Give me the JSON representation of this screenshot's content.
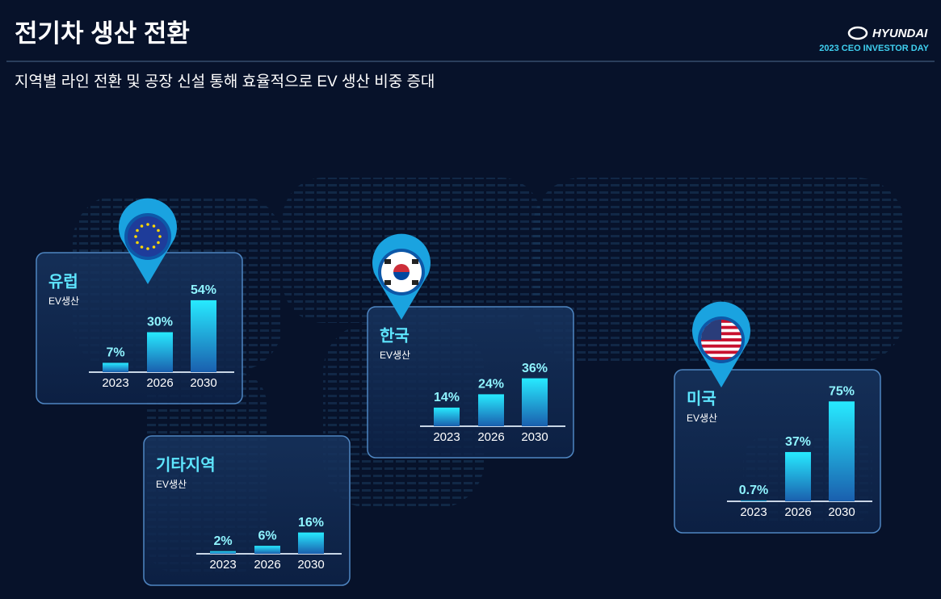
{
  "header": {
    "title": "전기차 생산 전환",
    "subtitle": "지역별 라인 전환 및 공장 신설 통해 효율적으로 EV 생산 비중 증대",
    "brand": "HYUNDAI",
    "event": "2023 CEO INVESTOR DAY"
  },
  "chart_data": [
    {
      "type": "bar",
      "title": "유럽",
      "subtitle": "EV생산",
      "categories": [
        "2023",
        "2026",
        "2030"
      ],
      "values": [
        7,
        30,
        54
      ],
      "value_labels": [
        "7%",
        "30%",
        "54%"
      ],
      "color": "#1ec8f0"
    },
    {
      "type": "bar",
      "title": "한국",
      "subtitle": "EV생산",
      "categories": [
        "2023",
        "2026",
        "2030"
      ],
      "values": [
        14,
        24,
        36
      ],
      "value_labels": [
        "14%",
        "24%",
        "36%"
      ],
      "color": "#1ec8f0"
    },
    {
      "type": "bar",
      "title": "미국",
      "subtitle": "EV생산",
      "categories": [
        "2023",
        "2026",
        "2030"
      ],
      "values": [
        0.7,
        37,
        75
      ],
      "value_labels": [
        "0.7%",
        "37%",
        "75%"
      ],
      "color": "#1ec8f0"
    },
    {
      "type": "bar",
      "title": "기타지역",
      "subtitle": "EV생산",
      "categories": [
        "2023",
        "2026",
        "2030"
      ],
      "values": [
        2,
        6,
        16
      ],
      "value_labels": [
        "2%",
        "6%",
        "16%"
      ],
      "color": "#1ec8f0"
    }
  ]
}
